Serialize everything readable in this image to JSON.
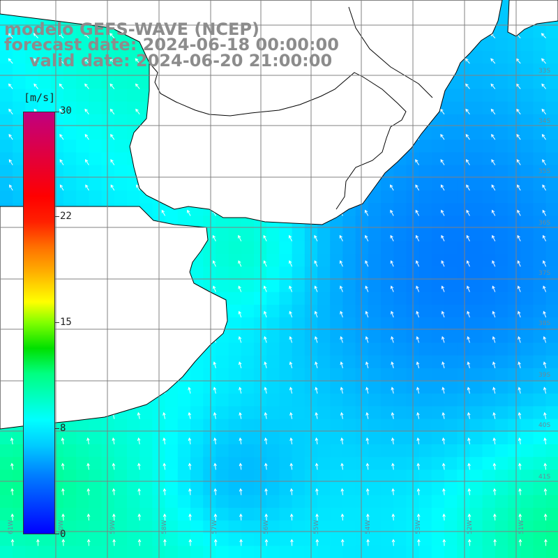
{
  "titles": {
    "model": "modelo GEFS-WAVE (NCEP)",
    "forecast": "forecast date: 2024-06-18 00:00:00",
    "valid": "valid date: 2024-06-20 21:00:00"
  },
  "colorbar": {
    "unit": "[m/s]",
    "ticks": [
      "30",
      "22",
      "15",
      "8",
      "0"
    ],
    "tick_values": [
      30,
      22,
      15,
      8,
      0
    ]
  },
  "colors": {
    "land": "#ffffff",
    "grid": "#808080",
    "coast": "#000000",
    "arrows": "#ffffff",
    "title": "#8c8c8c"
  },
  "grid_labels": {
    "lat": [
      "33S",
      "34S",
      "35S",
      "36S",
      "37S",
      "38S",
      "39S",
      "40S",
      "41S"
    ],
    "lon": [
      "61W",
      "60W",
      "59W",
      "58W",
      "57W",
      "56W",
      "55W",
      "54W",
      "53W",
      "52W",
      "51W"
    ]
  },
  "field": {
    "variable": "wind speed",
    "range": [
      0,
      30
    ]
  }
}
